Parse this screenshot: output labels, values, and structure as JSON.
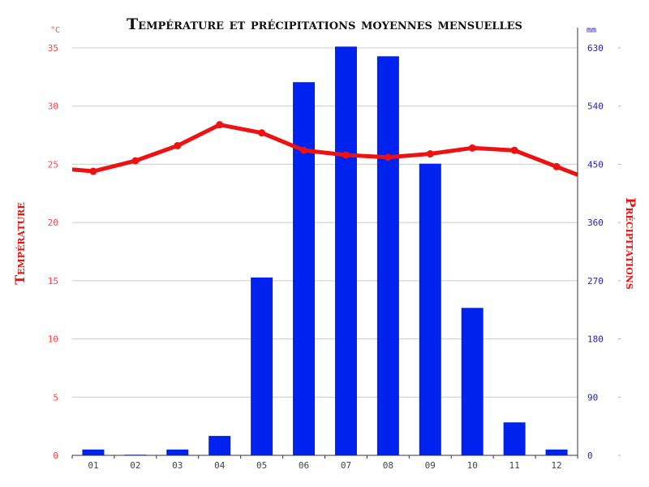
{
  "chart_data": {
    "type": "bar+line",
    "title": "Température et précipitations moyennes mensuelles",
    "categories": [
      "01",
      "02",
      "03",
      "04",
      "05",
      "06",
      "07",
      "08",
      "09",
      "10",
      "11",
      "12"
    ],
    "left_axis": {
      "label": "Température",
      "unit": "°C",
      "ylim": [
        0,
        35
      ],
      "ticks": [
        0,
        5,
        10,
        15,
        20,
        25,
        30,
        35
      ],
      "color": "#ff0000"
    },
    "right_axis": {
      "label": "Précipitations",
      "unit": "mm",
      "ylim": [
        0,
        630
      ],
      "ticks": [
        0,
        90,
        180,
        270,
        360,
        450,
        540,
        630
      ],
      "color": "#0000ff"
    },
    "series": [
      {
        "kind": "bar",
        "axis": "right",
        "color": "#0022ee",
        "values": [
          9,
          1,
          9,
          30,
          275,
          577,
          632,
          617,
          451,
          228,
          51,
          9
        ]
      },
      {
        "kind": "line",
        "axis": "left",
        "color": "#ee1111",
        "values": [
          24.4,
          25.3,
          26.6,
          28.4,
          27.7,
          26.2,
          25.8,
          25.6,
          25.9,
          26.4,
          26.2,
          24.8
        ],
        "extends_to_edges": true
      }
    ],
    "grid": true
  }
}
